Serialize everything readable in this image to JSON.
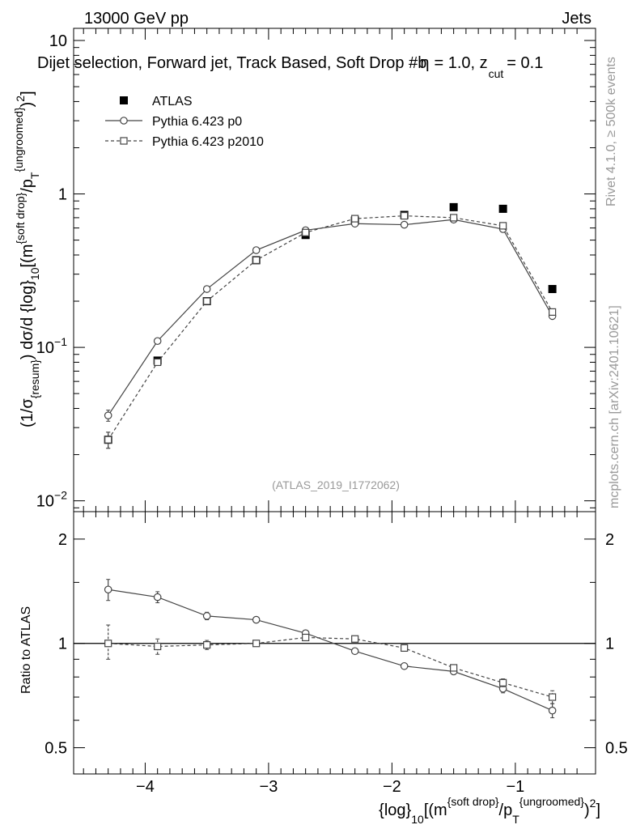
{
  "header": {
    "left": "13000 GeV pp",
    "right": "Jets",
    "title": "Dijet selection, Forward jet, Track Based, Soft Drop #b",
    "title_tail": "= 1.0, z",
    "title_sub": "cut",
    "title_end": "= 0.1",
    "beta_glyph": "η"
  },
  "side": {
    "rivet": "Rivet 4.1.0, ≥ 500k events",
    "mcplots": "mcplots.cern.ch [arXiv:2401.10621]"
  },
  "watermark": "(ATLAS_2019_I1772062)",
  "chart_data": [
    {
      "type": "scatter",
      "panel": "main",
      "ylabel_parts": {
        "a": "(1/σ",
        "a_sub": "{resum}",
        "b": ") dσ/d {log}",
        "b_sub": "10",
        "c": "[(m",
        "c_sup": "{soft drop}",
        "d": "/p",
        "d_sub": "T",
        "d_sup": "{ungroomed}",
        "e": ")",
        "e_sup": "2",
        "f": "]"
      },
      "yscale": "log",
      "ylim": [
        0.0085,
        12
      ],
      "xlim": [
        -4.58,
        -0.35
      ],
      "yticks": [
        {
          "value": 0.01,
          "label": "10",
          "exp": "−2"
        },
        {
          "value": 0.1,
          "label": "10",
          "exp": "−1"
        },
        {
          "value": 1,
          "label": "1",
          "exp": ""
        },
        {
          "value": 10,
          "label": "10",
          "exp": ""
        }
      ],
      "legend": [
        {
          "name": "ATLAS",
          "marker": "filled-square",
          "line": "none"
        },
        {
          "name": "Pythia 6.423 p0",
          "marker": "open-circle",
          "line": "solid"
        },
        {
          "name": "Pythia 6.423 p2010",
          "marker": "open-square",
          "line": "dashed"
        }
      ],
      "x": [
        -4.3,
        -3.9,
        -3.5,
        -3.1,
        -2.7,
        -2.3,
        -1.9,
        -1.5,
        -1.1,
        -0.7
      ],
      "series": [
        {
          "name": "ATLAS",
          "values": [
            0.025,
            0.082,
            0.2,
            0.37,
            0.54,
            0.67,
            0.73,
            0.82,
            0.8,
            0.24
          ],
          "err_lo": [
            0.003,
            0.004,
            0.006,
            0.008,
            0.01,
            0.012,
            0.015,
            0.02,
            0.02,
            0.01
          ],
          "err_hi": [
            0.003,
            0.004,
            0.006,
            0.008,
            0.01,
            0.012,
            0.015,
            0.02,
            0.02,
            0.01
          ]
        },
        {
          "name": "Pythia 6.423 p0",
          "values": [
            0.036,
            0.11,
            0.24,
            0.43,
            0.58,
            0.64,
            0.63,
            0.68,
            0.59,
            0.16
          ],
          "err_lo": [
            0.003,
            0,
            0,
            0,
            0,
            0,
            0,
            0,
            0,
            0
          ],
          "err_hi": [
            0.003,
            0,
            0,
            0,
            0,
            0,
            0,
            0,
            0,
            0
          ]
        },
        {
          "name": "Pythia 6.423 p2010",
          "values": [
            0.025,
            0.08,
            0.2,
            0.37,
            0.56,
            0.69,
            0.72,
            0.7,
            0.62,
            0.17
          ],
          "err_lo": [
            0.003,
            0.003,
            0,
            0,
            0,
            0,
            0,
            0,
            0,
            0
          ],
          "err_hi": [
            0.003,
            0.003,
            0,
            0,
            0,
            0,
            0,
            0,
            0,
            0
          ]
        }
      ]
    },
    {
      "type": "scatter",
      "panel": "ratio",
      "ylabel": "Ratio to ATLAS",
      "yscale": "log",
      "ylim": [
        0.42,
        2.4
      ],
      "xlim": [
        -4.58,
        -0.35
      ],
      "yticks": [
        {
          "value": 0.5,
          "label": "0.5"
        },
        {
          "value": 1,
          "label": "1"
        },
        {
          "value": 2,
          "label": "2"
        }
      ],
      "xticks": [
        {
          "value": -4,
          "label": "−4"
        },
        {
          "value": -3,
          "label": "−3"
        },
        {
          "value": -2,
          "label": "−2"
        },
        {
          "value": -1,
          "label": "−1"
        }
      ],
      "xlabel_parts": {
        "a": "{log}",
        "a_sub": "10",
        "b": "[(m",
        "b_sup": "{soft drop}",
        "c": "/p",
        "c_sub": "T",
        "c_sup": "{ungroomed}",
        "d": ")",
        "d_sup": "2",
        "e": "]"
      },
      "x": [
        -4.3,
        -3.9,
        -3.5,
        -3.1,
        -2.7,
        -2.3,
        -1.9,
        -1.5,
        -1.1,
        -0.7
      ],
      "series": [
        {
          "name": "Pythia 6.423 p0",
          "values": [
            1.43,
            1.36,
            1.2,
            1.17,
            1.07,
            0.95,
            0.86,
            0.83,
            0.74,
            0.64
          ],
          "err_lo": [
            0.1,
            0.05,
            0.03,
            0.02,
            0,
            0,
            0,
            0,
            0.02,
            0.03
          ],
          "err_hi": [
            0.1,
            0.05,
            0.03,
            0.02,
            0,
            0,
            0,
            0,
            0.02,
            0.03
          ]
        },
        {
          "name": "Pythia 6.423 p2010",
          "values": [
            1.0,
            0.98,
            0.99,
            1.0,
            1.04,
            1.03,
            0.97,
            0.85,
            0.77,
            0.7
          ],
          "err_lo": [
            0.1,
            0.05,
            0.03,
            0.02,
            0,
            0,
            0,
            0,
            0.02,
            0.03
          ],
          "err_hi": [
            0.13,
            0.05,
            0.03,
            0.02,
            0,
            0,
            0,
            0,
            0.02,
            0.03
          ]
        }
      ]
    }
  ]
}
